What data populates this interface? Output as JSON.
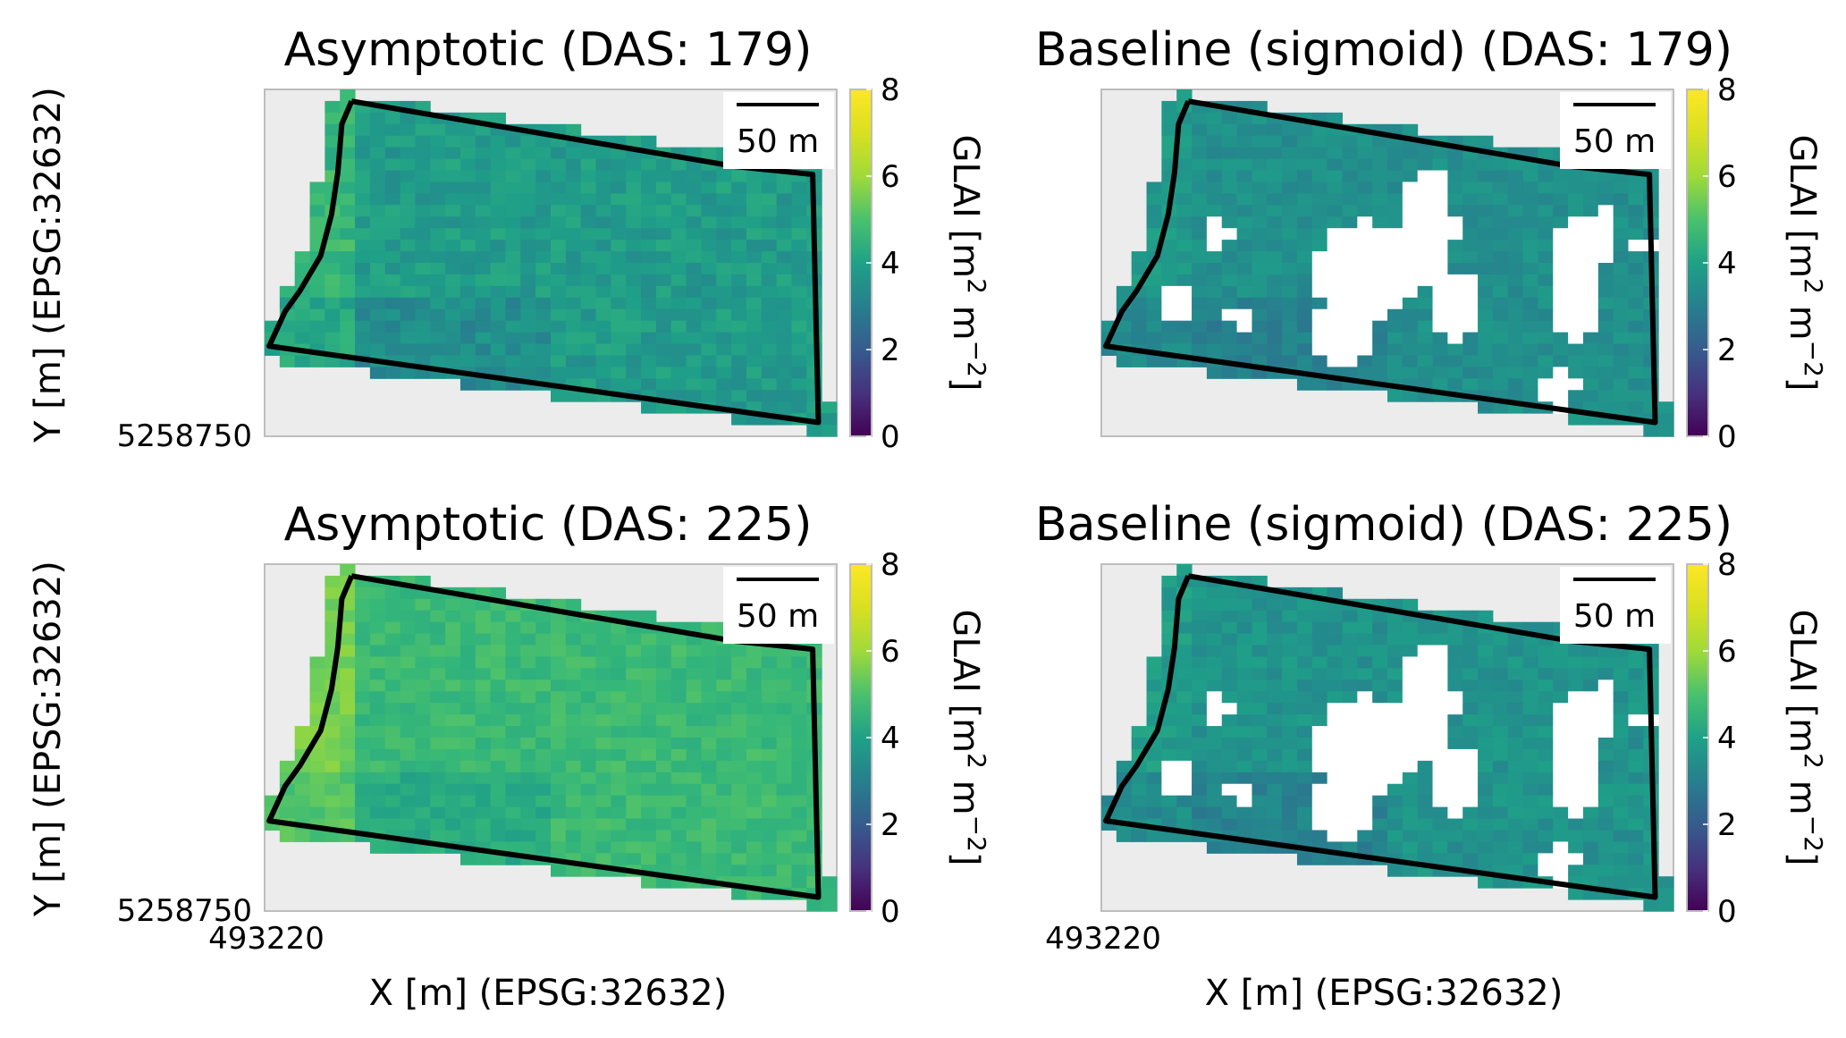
{
  "figure": {
    "panels": [
      {
        "title": "Asymptotic (DAS: 179)"
      },
      {
        "title": "Baseline (sigmoid) (DAS: 179)"
      },
      {
        "title": "Asymptotic (DAS: 225)"
      },
      {
        "title": "Baseline (sigmoid) (DAS: 225)"
      }
    ],
    "ylabel": "Y [m] (EPSG:32632)",
    "xlabel": "X [m] (EPSG:32632)",
    "y_tick": "5258750",
    "x_tick": "493220",
    "scalebar_label": "50 m",
    "colorbar": {
      "label": "GLAI [m² m⁻²]",
      "label_main": "GLAI [m",
      "label_sup1": "2",
      "label_mid": " m",
      "label_sup2": "−2",
      "label_end": "]",
      "ticks": [
        "0",
        "2",
        "4",
        "6",
        "8"
      ],
      "colormap": "viridis",
      "range": [
        0,
        8
      ]
    }
  },
  "chart_data": [
    {
      "type": "heatmap",
      "title": "Asymptotic (DAS: 179)",
      "xlabel": "",
      "ylabel": "Y [m] (EPSG:32632)",
      "y_ticks": [
        "5258750"
      ],
      "colorbar_ticks": [
        0,
        2,
        4,
        6,
        8
      ],
      "colorbar_label": "GLAI [m² m⁻²]",
      "scalebar": "50 m",
      "glai_typical": 4.4,
      "glai_range_estimate": [
        3.0,
        5.8
      ],
      "gaps": false
    },
    {
      "type": "heatmap",
      "title": "Baseline (sigmoid) (DAS: 179)",
      "xlabel": "",
      "ylabel": "",
      "colorbar_ticks": [
        0,
        2,
        4,
        6,
        8
      ],
      "colorbar_label": "GLAI [m² m⁻²]",
      "scalebar": "50 m",
      "glai_typical": 4.0,
      "glai_range_estimate": [
        3.0,
        5.0
      ],
      "gaps": true
    },
    {
      "type": "heatmap",
      "title": "Asymptotic (DAS: 225)",
      "xlabel": "X [m] (EPSG:32632)",
      "ylabel": "Y [m] (EPSG:32632)",
      "x_ticks": [
        "493220"
      ],
      "y_ticks": [
        "5258750"
      ],
      "colorbar_ticks": [
        0,
        2,
        4,
        6,
        8
      ],
      "colorbar_label": "GLAI [m² m⁻²]",
      "scalebar": "50 m",
      "glai_typical": 5.4,
      "glai_range_estimate": [
        4.2,
        6.2
      ],
      "gaps": false
    },
    {
      "type": "heatmap",
      "title": "Baseline (sigmoid) (DAS: 225)",
      "xlabel": "X [m] (EPSG:32632)",
      "ylabel": "",
      "x_ticks": [
        "493220"
      ],
      "colorbar_ticks": [
        0,
        2,
        4,
        6,
        8
      ],
      "colorbar_label": "GLAI [m² m⁻²]",
      "scalebar": "50 m",
      "glai_typical": 4.1,
      "glai_range_estimate": [
        3.0,
        5.2
      ],
      "gaps": true
    }
  ]
}
